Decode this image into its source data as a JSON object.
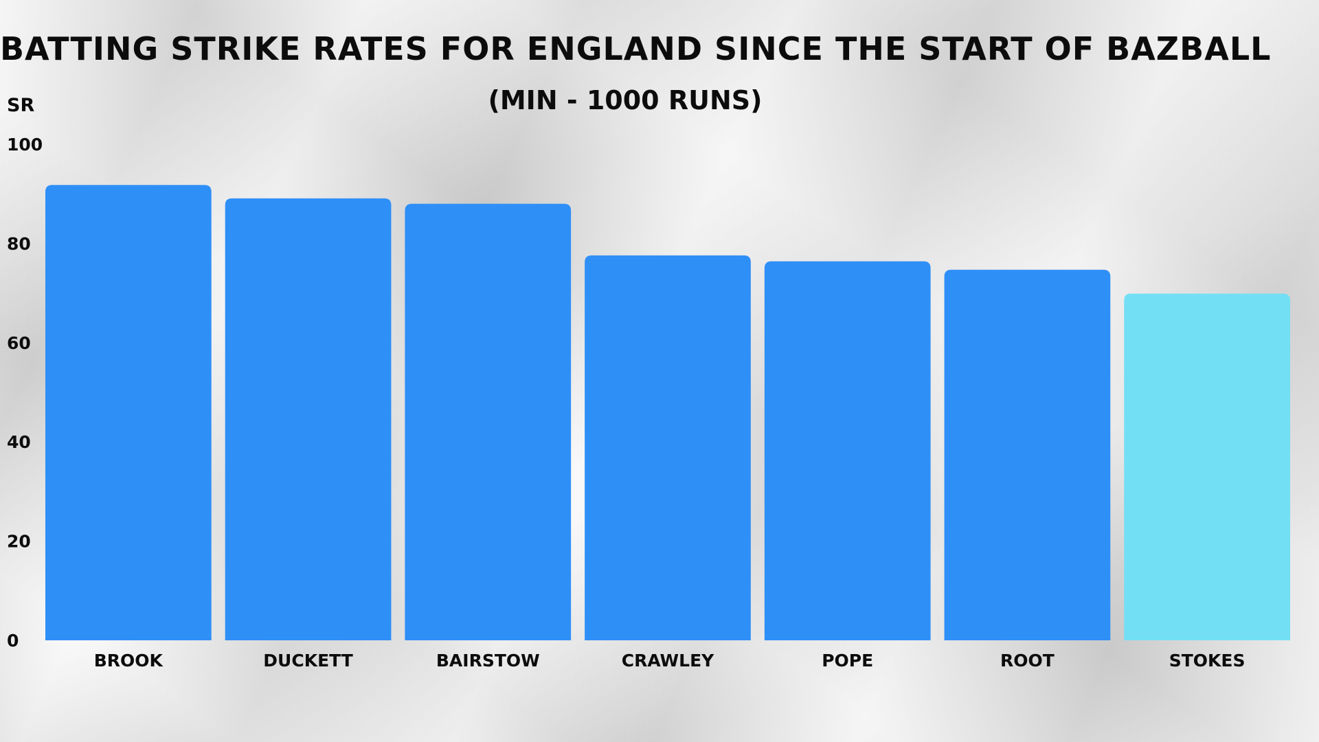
{
  "chart_data": {
    "type": "bar",
    "title": "BATTING STRIKE RATES FOR ENGLAND SINCE THE START OF BAZBALL",
    "subtitle": "(MIN - 1000 RUNS)",
    "ylabel": "SR",
    "xlabel": "",
    "ylim": [
      0,
      100
    ],
    "yticks": [
      "0",
      "20",
      "40",
      "60",
      "80",
      "100"
    ],
    "grid": false,
    "categories": [
      "BROOK",
      "DUCKETT",
      "BAIRSTOW",
      "CRAWLEY",
      "POPE",
      "ROOT",
      "STOKES"
    ],
    "values": [
      91.8,
      89.1,
      88.0,
      77.6,
      76.4,
      74.7,
      69.9
    ],
    "colors": [
      "#2e8ff7",
      "#2e8ff7",
      "#2e8ff7",
      "#2e8ff7",
      "#2e8ff7",
      "#2e8ff7",
      "#72dff5"
    ]
  }
}
